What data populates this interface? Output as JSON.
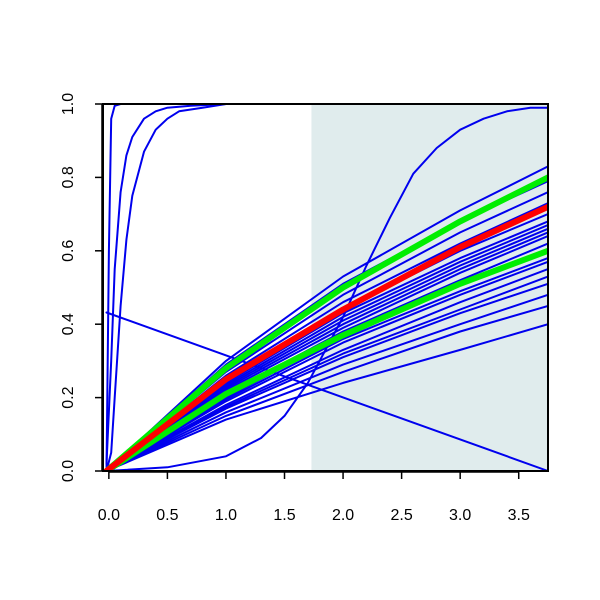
{
  "chart_data": {
    "type": "line",
    "title": "",
    "xlabel": "",
    "ylabel": "",
    "xlim": [
      -0.05,
      3.75
    ],
    "ylim": [
      0.0,
      1.0
    ],
    "x_ticks": [
      0.0,
      0.5,
      1.0,
      1.5,
      2.0,
      2.5,
      3.0,
      3.5
    ],
    "x_tick_labels": [
      "0.0",
      "0.5",
      "1.0",
      "1.5",
      "2.0",
      "2.5",
      "3.0",
      "3.5"
    ],
    "y_ticks": [
      0.0,
      0.2,
      0.4,
      0.6,
      0.8,
      1.0
    ],
    "y_tick_labels": [
      "0.0",
      "0.2",
      "0.4",
      "0.6",
      "0.8",
      "1.0"
    ],
    "grid": false,
    "legend": "none",
    "shaded_region": {
      "x_from": 1.73,
      "x_to": 3.75,
      "color": "#e0eced"
    },
    "colors": {
      "curve": "#0000ee",
      "mean": "#ff0000",
      "band": "#00ee00",
      "shade": "#e0eced"
    },
    "series": [
      {
        "color": "#0000ee",
        "width": 2,
        "x": [
          -0.02,
          0.0,
          0.02,
          0.05,
          0.1,
          0.3,
          1.0,
          3.75
        ],
        "y": [
          0.0,
          0.6,
          0.96,
          0.995,
          1.0,
          1.0,
          1.0,
          1.0
        ]
      },
      {
        "color": "#0000ee",
        "width": 2,
        "x": [
          -0.02,
          0.02,
          0.05,
          0.1,
          0.15,
          0.2,
          0.3,
          0.4,
          0.5,
          0.7,
          1.0,
          1.5,
          3.75
        ],
        "y": [
          0.02,
          0.3,
          0.55,
          0.76,
          0.86,
          0.91,
          0.96,
          0.98,
          0.99,
          0.995,
          1.0,
          1.0,
          1.0
        ]
      },
      {
        "color": "#0000ee",
        "width": 2,
        "x": [
          -0.02,
          0.02,
          0.05,
          0.1,
          0.15,
          0.2,
          0.3,
          0.4,
          0.5,
          0.6,
          0.8,
          1.0,
          1.5,
          3.75
        ],
        "y": [
          0.0,
          0.05,
          0.2,
          0.45,
          0.63,
          0.75,
          0.87,
          0.93,
          0.96,
          0.98,
          0.99,
          1.0,
          1.0,
          1.0
        ]
      },
      {
        "color": "#0000ee",
        "width": 2,
        "x": [
          -0.02,
          3.75
        ],
        "y": [
          0.432,
          0.0
        ]
      },
      {
        "color": "#0000ee",
        "width": 2,
        "x": [
          -0.02,
          0.5,
          1.0,
          1.3,
          1.5,
          1.7,
          1.9,
          2.0,
          2.2,
          2.4,
          2.6,
          2.8,
          3.0,
          3.2,
          3.4,
          3.6,
          3.75
        ],
        "y": [
          0.0,
          0.01,
          0.04,
          0.09,
          0.15,
          0.24,
          0.36,
          0.42,
          0.56,
          0.69,
          0.81,
          0.88,
          0.93,
          0.96,
          0.98,
          0.99,
          0.99
        ]
      },
      {
        "color": "#0000ee",
        "width": 2,
        "x": [
          -0.02,
          1.0,
          2.0,
          3.0,
          3.75
        ],
        "y": [
          0.0,
          0.3,
          0.53,
          0.71,
          0.83
        ]
      },
      {
        "color": "#0000ee",
        "width": 2,
        "x": [
          -0.02,
          1.0,
          2.0,
          3.0,
          3.75
        ],
        "y": [
          0.0,
          0.29,
          0.51,
          0.68,
          0.79
        ]
      },
      {
        "color": "#0000ee",
        "width": 2,
        "x": [
          -0.02,
          1.0,
          2.0,
          3.0,
          3.75
        ],
        "y": [
          0.0,
          0.27,
          0.48,
          0.65,
          0.76
        ]
      },
      {
        "color": "#0000ee",
        "width": 2,
        "x": [
          -0.02,
          1.0,
          2.0,
          3.0,
          3.75
        ],
        "y": [
          0.0,
          0.26,
          0.46,
          0.62,
          0.73
        ]
      },
      {
        "color": "#0000ee",
        "width": 2,
        "x": [
          -0.02,
          1.0,
          2.0,
          3.0,
          3.75
        ],
        "y": [
          0.0,
          0.25,
          0.44,
          0.6,
          0.7
        ]
      },
      {
        "color": "#0000ee",
        "width": 2,
        "x": [
          -0.02,
          1.0,
          2.0,
          3.0,
          3.75
        ],
        "y": [
          0.0,
          0.24,
          0.43,
          0.58,
          0.68
        ]
      },
      {
        "color": "#0000ee",
        "width": 2,
        "x": [
          -0.02,
          1.0,
          2.0,
          3.0,
          3.75
        ],
        "y": [
          0.0,
          0.235,
          0.42,
          0.57,
          0.67
        ]
      },
      {
        "color": "#0000ee",
        "width": 2,
        "x": [
          -0.02,
          1.0,
          2.0,
          3.0,
          3.75
        ],
        "y": [
          0.0,
          0.23,
          0.41,
          0.56,
          0.66
        ]
      },
      {
        "color": "#0000ee",
        "width": 2,
        "x": [
          -0.02,
          1.0,
          2.0,
          3.0,
          3.75
        ],
        "y": [
          0.0,
          0.225,
          0.4,
          0.55,
          0.65
        ]
      },
      {
        "color": "#0000ee",
        "width": 2,
        "x": [
          -0.02,
          1.0,
          2.0,
          3.0,
          3.75
        ],
        "y": [
          0.0,
          0.22,
          0.39,
          0.54,
          0.64
        ]
      },
      {
        "color": "#0000ee",
        "width": 2,
        "x": [
          -0.02,
          1.0,
          2.0,
          3.0,
          3.75
        ],
        "y": [
          0.0,
          0.21,
          0.38,
          0.52,
          0.62
        ]
      },
      {
        "color": "#0000ee",
        "width": 2,
        "x": [
          -0.02,
          1.0,
          2.0,
          3.0,
          3.75
        ],
        "y": [
          0.0,
          0.2,
          0.37,
          0.51,
          0.6
        ]
      },
      {
        "color": "#0000ee",
        "width": 2,
        "x": [
          -0.02,
          1.0,
          2.0,
          3.0,
          3.75
        ],
        "y": [
          0.0,
          0.195,
          0.36,
          0.49,
          0.58
        ]
      },
      {
        "color": "#0000ee",
        "width": 2,
        "x": [
          -0.02,
          1.0,
          2.0,
          3.0,
          3.75
        ],
        "y": [
          0.0,
          0.19,
          0.35,
          0.48,
          0.57
        ]
      },
      {
        "color": "#0000ee",
        "width": 2,
        "x": [
          -0.02,
          1.0,
          2.0,
          3.0,
          3.75
        ],
        "y": [
          0.0,
          0.18,
          0.33,
          0.46,
          0.55
        ]
      },
      {
        "color": "#0000ee",
        "width": 2,
        "x": [
          -0.02,
          1.0,
          2.0,
          3.0,
          3.75
        ],
        "y": [
          0.0,
          0.175,
          0.32,
          0.44,
          0.53
        ]
      },
      {
        "color": "#0000ee",
        "width": 2,
        "x": [
          -0.02,
          1.0,
          2.0,
          3.0,
          3.75
        ],
        "y": [
          0.0,
          0.17,
          0.31,
          0.43,
          0.51
        ]
      },
      {
        "color": "#0000ee",
        "width": 2,
        "x": [
          -0.02,
          1.0,
          2.0,
          3.0,
          3.75
        ],
        "y": [
          0.0,
          0.16,
          0.29,
          0.4,
          0.48
        ]
      },
      {
        "color": "#0000ee",
        "width": 2,
        "x": [
          -0.02,
          1.0,
          2.0,
          3.0,
          3.75
        ],
        "y": [
          0.0,
          0.15,
          0.27,
          0.38,
          0.45
        ]
      },
      {
        "color": "#0000ee",
        "width": 2,
        "x": [
          -0.02,
          1.0,
          2.0,
          3.0,
          3.75
        ],
        "y": [
          0.0,
          0.14,
          0.24,
          0.33,
          0.4
        ]
      },
      {
        "color": "#00ee00",
        "width": 6,
        "x": [
          -0.02,
          1.0,
          2.0,
          3.0,
          3.75
        ],
        "y": [
          0.0,
          0.28,
          0.5,
          0.68,
          0.8
        ]
      },
      {
        "color": "#00ee00",
        "width": 6,
        "x": [
          -0.02,
          1.0,
          2.0,
          3.0,
          3.75
        ],
        "y": [
          0.0,
          0.21,
          0.37,
          0.51,
          0.6
        ]
      },
      {
        "color": "#ff0000",
        "width": 6,
        "x": [
          -0.02,
          1.0,
          2.0,
          3.0,
          3.75
        ],
        "y": [
          0.0,
          0.25,
          0.44,
          0.61,
          0.72
        ]
      }
    ]
  }
}
